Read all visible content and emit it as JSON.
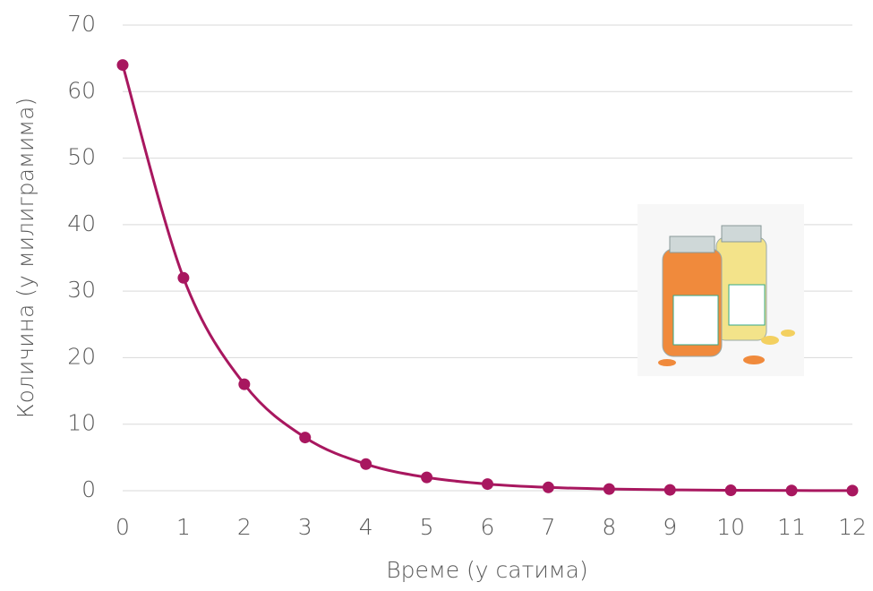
{
  "chart_data": {
    "type": "line",
    "x_label": "Време (у сатима)",
    "y_label": "Количина (у милиграмима)",
    "x": [
      0,
      1,
      2,
      3,
      4,
      5,
      6,
      7,
      8,
      9,
      10,
      11,
      12
    ],
    "series": [
      {
        "name": "Количина",
        "color": "#a8175f",
        "values": [
          64,
          32,
          16,
          8,
          4,
          2,
          1,
          0.5,
          0.25,
          0.125,
          0.0625,
          0.03125,
          0.015625
        ]
      }
    ],
    "xlim": [
      0,
      12
    ],
    "xticks": [
      0,
      1,
      2,
      3,
      4,
      5,
      6,
      7,
      8,
      9,
      10,
      11,
      12
    ],
    "ylim": [
      0,
      70
    ],
    "yticks": [
      0,
      10,
      20,
      30,
      40,
      50,
      60,
      70
    ],
    "grid": true,
    "smooth": true,
    "markers": true
  }
}
